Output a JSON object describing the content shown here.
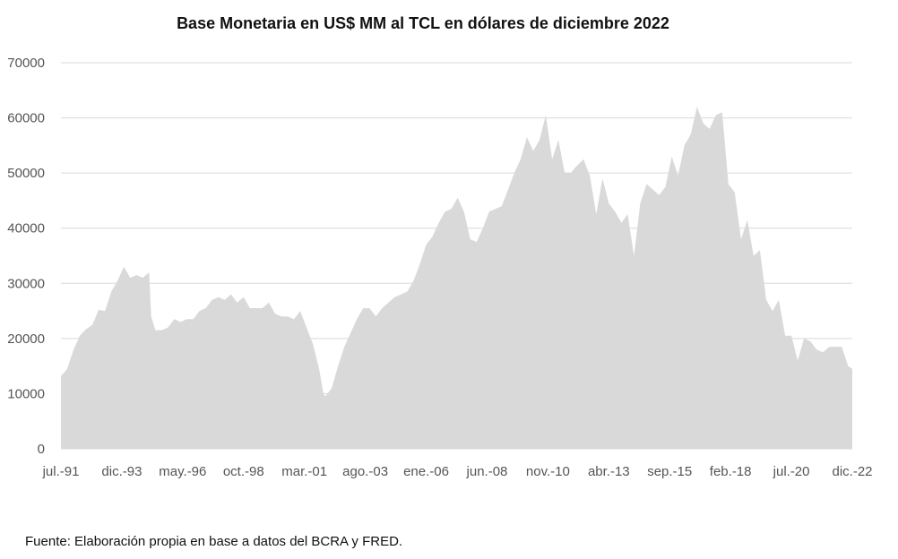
{
  "chart_data": {
    "type": "area",
    "title": "Base Monetaria en US$ MM al TCL en dólares de diciembre 2022",
    "xlabel": "",
    "ylabel": "",
    "ylim": [
      0,
      70000
    ],
    "yticks": [
      0,
      10000,
      20000,
      30000,
      40000,
      50000,
      60000,
      70000
    ],
    "x_tick_labels": [
      "jul.-91",
      "dic.-93",
      "may.-96",
      "oct.-98",
      "mar.-01",
      "ago.-03",
      "ene.-06",
      "jun.-08",
      "nov.-10",
      "abr.-13",
      "sep.-15",
      "feb.-18",
      "jul.-20",
      "dic.-22"
    ],
    "grid": true,
    "legend": "none",
    "fill_color": "#d9d9d9",
    "series": [
      {
        "x": [
          "1991-07",
          "1991-10",
          "1992-01",
          "1992-04",
          "1992-07",
          "1992-10",
          "1993-01",
          "1993-04",
          "1993-07",
          "1993-10",
          "1994-01",
          "1994-04",
          "1994-07",
          "1994-10",
          "1995-01",
          "1995-02",
          "1995-04",
          "1995-07",
          "1995-10",
          "1996-01",
          "1996-04",
          "1996-07",
          "1996-10",
          "1997-01",
          "1997-04",
          "1997-07",
          "1997-10",
          "1998-01",
          "1998-04",
          "1998-07",
          "1998-10",
          "1999-01",
          "1999-04",
          "1999-07",
          "1999-10",
          "2000-01",
          "2000-04",
          "2000-07",
          "2000-10",
          "2001-01",
          "2001-04",
          "2001-07",
          "2001-10",
          "2001-12",
          "2002-01",
          "2002-04",
          "2002-07",
          "2002-10",
          "2003-01",
          "2003-04",
          "2003-07",
          "2003-10",
          "2004-01",
          "2004-04",
          "2004-07",
          "2004-10",
          "2005-01",
          "2005-04",
          "2005-07",
          "2005-10",
          "2006-01",
          "2006-04",
          "2006-07",
          "2006-10",
          "2007-01",
          "2007-04",
          "2007-07",
          "2007-10",
          "2008-01",
          "2008-04",
          "2008-07",
          "2008-10",
          "2009-01",
          "2009-04",
          "2009-07",
          "2009-10",
          "2010-01",
          "2010-04",
          "2010-07",
          "2010-10",
          "2011-01",
          "2011-04",
          "2011-07",
          "2011-10",
          "2011-12",
          "2012-04",
          "2012-07",
          "2012-10",
          "2013-01",
          "2013-04",
          "2013-07",
          "2013-10",
          "2014-01",
          "2014-04",
          "2014-07",
          "2014-10",
          "2015-01",
          "2015-04",
          "2015-07",
          "2015-10",
          "2016-01",
          "2016-04",
          "2016-07",
          "2016-10",
          "2017-01",
          "2017-04",
          "2017-07",
          "2017-10",
          "2018-01",
          "2018-04",
          "2018-07",
          "2018-10",
          "2019-01",
          "2019-04",
          "2019-07",
          "2019-10",
          "2020-01",
          "2020-04",
          "2020-07",
          "2020-10",
          "2021-01",
          "2021-04",
          "2021-07",
          "2021-10",
          "2022-01",
          "2022-04",
          "2022-07",
          "2022-10",
          "2022-12"
        ],
        "values": [
          13200,
          14500,
          18000,
          20500,
          21700,
          22500,
          25200,
          25000,
          28500,
          30500,
          33000,
          31000,
          31500,
          31000,
          32000,
          24000,
          21500,
          21500,
          22000,
          23500,
          23000,
          23500,
          23500,
          25000,
          25500,
          27000,
          27500,
          27000,
          28000,
          26500,
          27500,
          25500,
          25500,
          25500,
          26500,
          24500,
          24000,
          24000,
          23500,
          25000,
          22000,
          19000,
          14500,
          10000,
          9500,
          11000,
          15000,
          18500,
          21000,
          23500,
          25500,
          25500,
          24000,
          25500,
          26500,
          27500,
          28000,
          28500,
          30500,
          33500,
          37000,
          38500,
          41000,
          43000,
          43500,
          45500,
          43000,
          38000,
          37500,
          40000,
          43000,
          43500,
          44000,
          47000,
          50000,
          52500,
          56500,
          54000,
          56000,
          60500,
          52500,
          56000,
          50000,
          50000,
          51000,
          52500,
          49500,
          42500,
          49000,
          44500,
          43000,
          41000,
          42500,
          35000,
          44500,
          48000,
          47000,
          46000,
          47500,
          53000,
          49500,
          55000,
          57000,
          62000,
          59000,
          58000,
          60500,
          61000,
          48000,
          46500,
          38000,
          41500,
          35000,
          36000,
          27000,
          25000,
          27000,
          20500,
          20500,
          16000,
          20000,
          19500,
          18000,
          17500,
          18500,
          18500,
          18500,
          15000,
          14500
        ]
      }
    ],
    "source": "Fuente: Elaboración propia en base a datos del BCRA  y FRED."
  }
}
